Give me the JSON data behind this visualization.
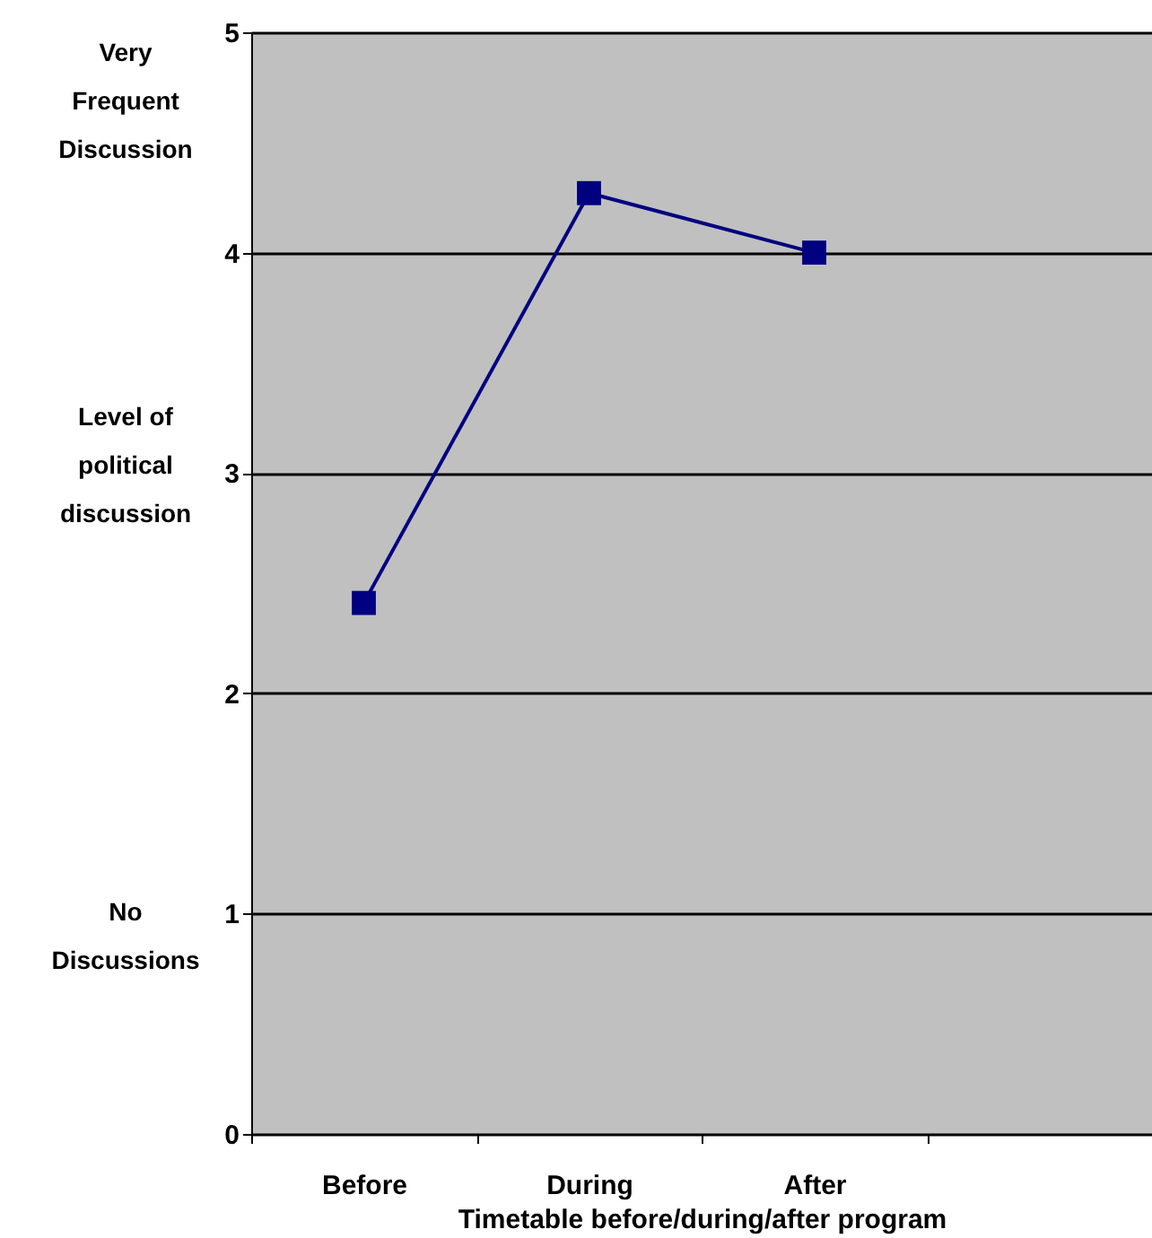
{
  "chart_data": {
    "type": "line",
    "xlabel": "Timetable before/during/after program",
    "ylabel": "Level of political discussion",
    "categories": [
      "Before",
      "During",
      "After",
      null
    ],
    "series": [
      {
        "color": "#000080",
        "values": [
          2.41,
          4.27,
          4.0,
          null
        ]
      }
    ],
    "ylim": [
      0,
      5
    ],
    "yticks": [
      0,
      1,
      2,
      3,
      4,
      5
    ],
    "grid": "y",
    "marker": "square",
    "line_style": "solid",
    "annotations": [
      "Very Frequent Discussion",
      "No Discussions"
    ]
  }
}
